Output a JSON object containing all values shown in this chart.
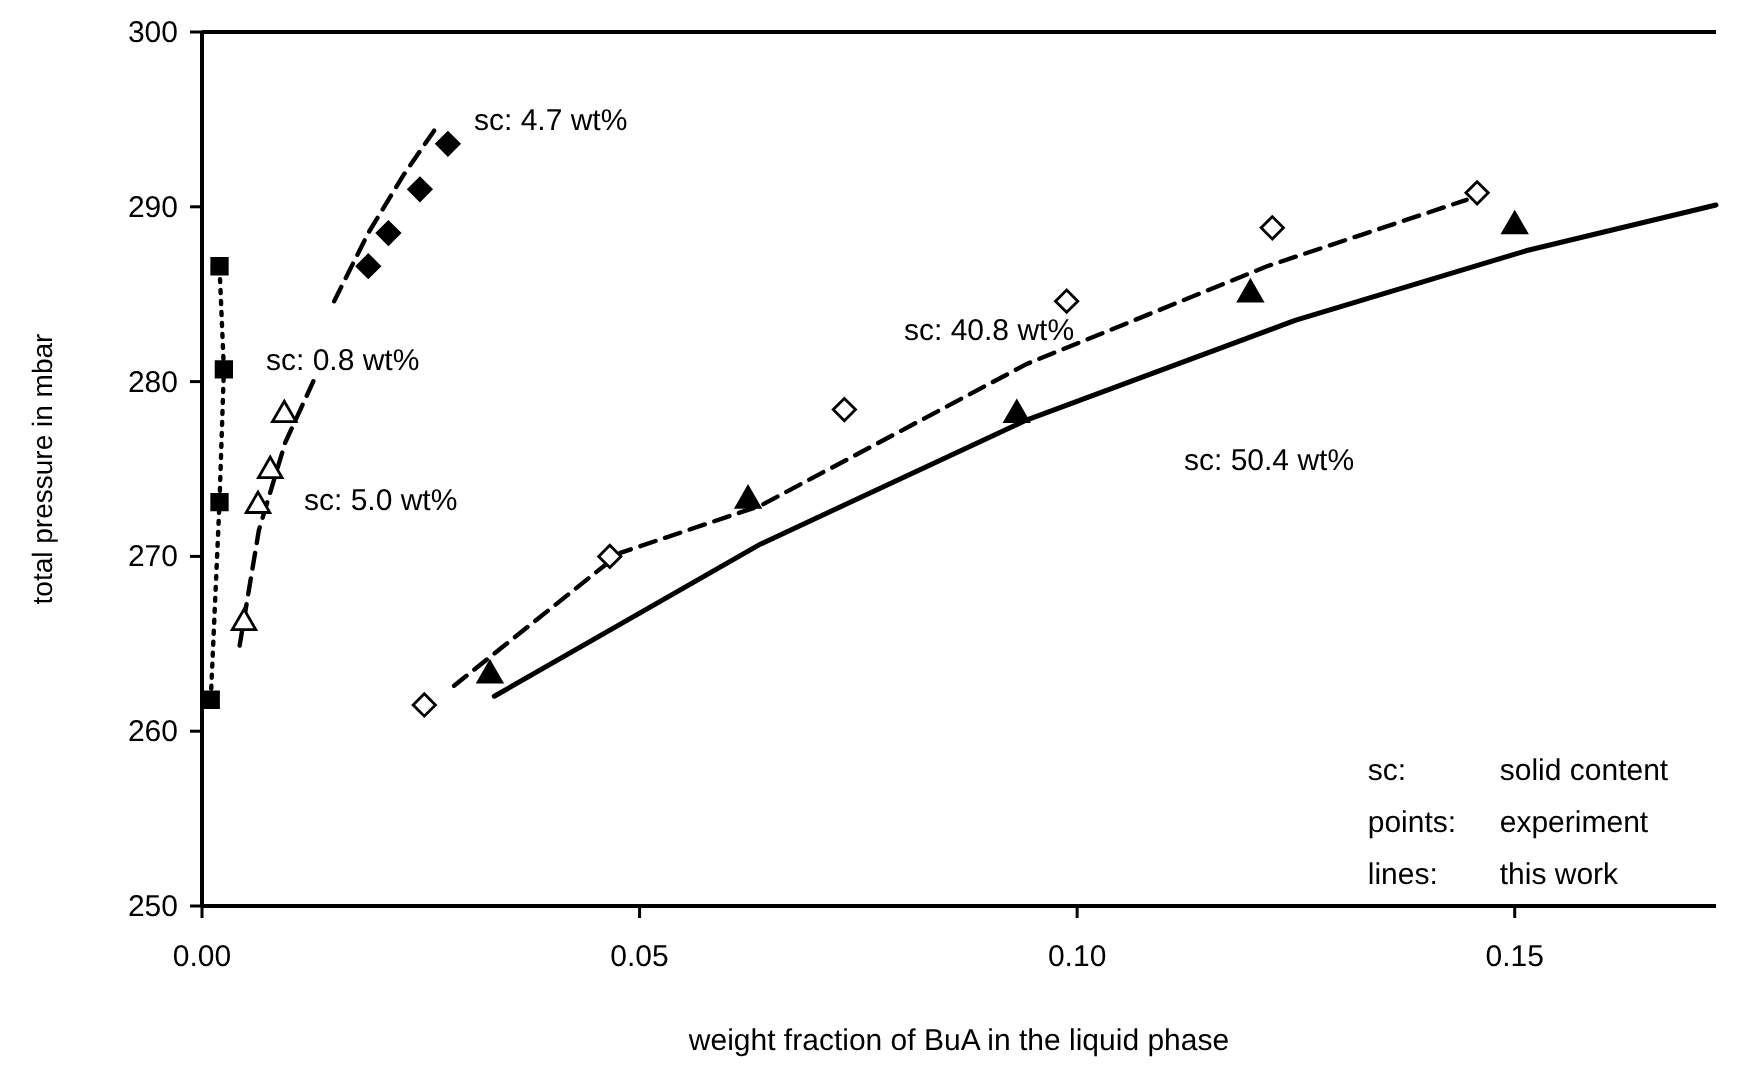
{
  "chart_data": {
    "type": "scatter",
    "xlabel": "weight fraction of BuA in the liquid phase",
    "ylabel": "total pressure in mbar",
    "xlim": [
      0,
      0.173
    ],
    "ylim": [
      250,
      300
    ],
    "xticks": [
      {
        "value": 0,
        "label": "0.00"
      },
      {
        "value": 0.05,
        "label": "0.05"
      },
      {
        "value": 0.1,
        "label": "0.10"
      },
      {
        "value": 0.15,
        "label": "0.15"
      }
    ],
    "yticks": [
      250,
      260,
      270,
      280,
      290,
      300
    ],
    "grid": false,
    "series": [
      {
        "type": "line",
        "line_style": "dotted",
        "color": "#000000",
        "x": [
          0.001,
          0.002,
          0.0025,
          0.002
        ],
        "values": [
          261.8,
          273.1,
          280.7,
          286.6
        ]
      },
      {
        "type": "line",
        "line_style": "dashed",
        "color": "#000000",
        "x": [
          0.0043,
          0.0065,
          0.0095,
          0.0128
        ],
        "values": [
          264.9,
          271.5,
          276.5,
          280.1
        ]
      },
      {
        "type": "line",
        "line_style": "dashed",
        "color": "#000000",
        "x": [
          0.0151,
          0.019,
          0.023,
          0.027
        ],
        "values": [
          284.6,
          288.5,
          291.8,
          294.7
        ]
      },
      {
        "type": "line",
        "line_style": "dashed",
        "color": "#000000",
        "x": [
          0.0288,
          0.0478,
          0.0638,
          0.0942,
          0.1217,
          0.1445
        ],
        "values": [
          262.6,
          270.2,
          272.9,
          281.0,
          286.6,
          290.4
        ]
      },
      {
        "type": "line",
        "line_style": "solid",
        "color": "#000000",
        "x": [
          0.0334,
          0.0638,
          0.0942,
          0.1249,
          0.1514,
          0.173
        ],
        "values": [
          262.0,
          270.7,
          277.8,
          283.5,
          287.5,
          290.1
        ]
      },
      {
        "marker": "square",
        "color": "#000000",
        "x": [
          0.001,
          0.002,
          0.0025,
          0.002
        ],
        "values": [
          261.8,
          273.1,
          280.7,
          286.6
        ]
      },
      {
        "marker": "triangle",
        "color": "#ffffff",
        "x": [
          0.0048,
          0.0064,
          0.0078,
          0.0094
        ],
        "values": [
          266.2,
          272.9,
          274.9,
          278.1
        ]
      },
      {
        "marker": "diamond",
        "color": "#000000",
        "x": [
          0.019,
          0.0213,
          0.0249,
          0.0281
        ],
        "values": [
          286.6,
          288.5,
          291.0,
          293.6
        ]
      },
      {
        "marker": "diamond",
        "color": "#ffffff",
        "x": [
          0.0254,
          0.0466,
          0.0734,
          0.0988,
          0.1223,
          0.1457
        ],
        "values": [
          261.5,
          270.0,
          278.4,
          284.6,
          288.8,
          290.8
        ]
      },
      {
        "marker": "triangle",
        "color": "#000000",
        "x": [
          0.0329,
          0.0624,
          0.0931,
          0.1198,
          0.15
        ],
        "values": [
          263.2,
          273.2,
          278.1,
          285.0,
          288.9
        ]
      }
    ],
    "annotations": [
      "sc: 4.7 wt%",
      "sc: 0.8 wt%",
      "sc: 5.0 wt%",
      "sc: 40.8 wt%",
      "sc: 50.4 wt%",
      "sc:",
      "solid content",
      "points:",
      "experiment",
      "lines:",
      "this work"
    ]
  }
}
